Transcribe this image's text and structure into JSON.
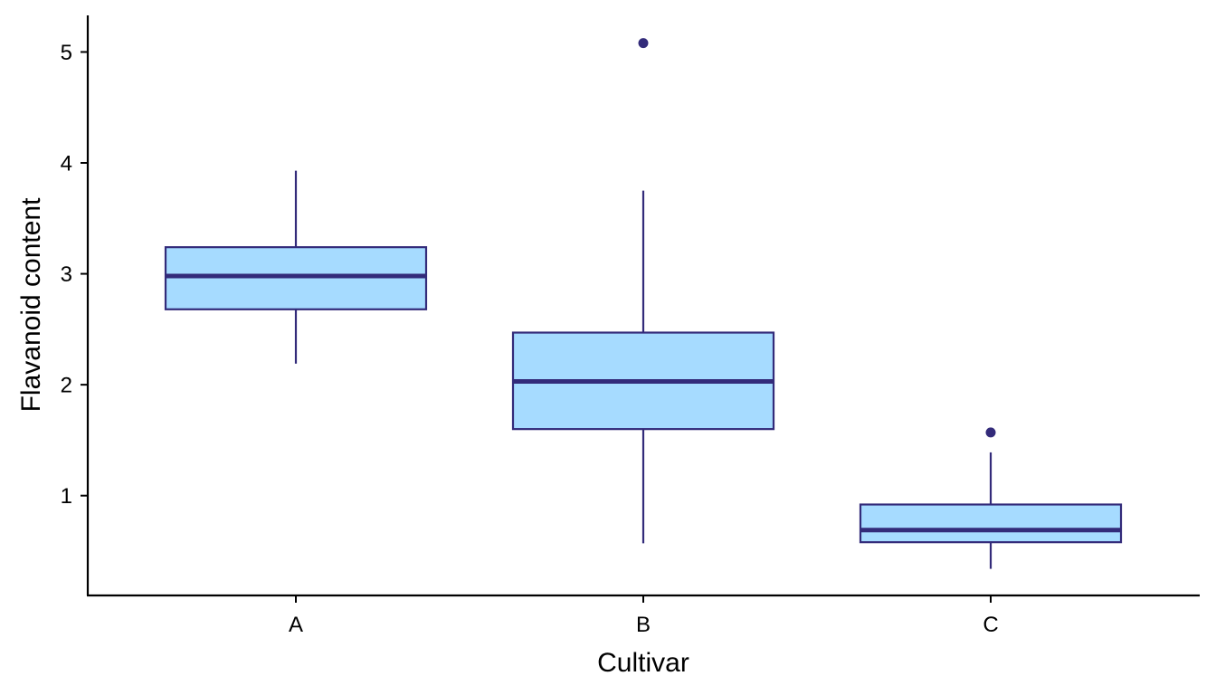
{
  "chart_data": {
    "type": "box",
    "xlabel": "Cultivar",
    "ylabel": "Flavanoid content",
    "categories": [
      "A",
      "B",
      "C"
    ],
    "yticks": [
      1,
      2,
      3,
      4,
      5
    ],
    "ylim": [
      0.1,
      5.33
    ],
    "boxes": [
      {
        "category": "A",
        "whisker_low": 2.19,
        "q1": 2.68,
        "median": 2.98,
        "q3": 3.24,
        "whisker_high": 3.93,
        "outliers": []
      },
      {
        "category": "B",
        "whisker_low": 0.57,
        "q1": 1.6,
        "median": 2.03,
        "q3": 2.47,
        "whisker_high": 3.75,
        "outliers": [
          5.08
        ]
      },
      {
        "category": "C",
        "whisker_low": 0.34,
        "q1": 0.58,
        "median": 0.69,
        "q3": 0.92,
        "whisker_high": 1.39,
        "outliers": [
          1.57
        ]
      }
    ],
    "grid": false,
    "colors": {
      "fill": "#a6dbff",
      "stroke": "#332b7a",
      "axis": "#000000"
    }
  }
}
